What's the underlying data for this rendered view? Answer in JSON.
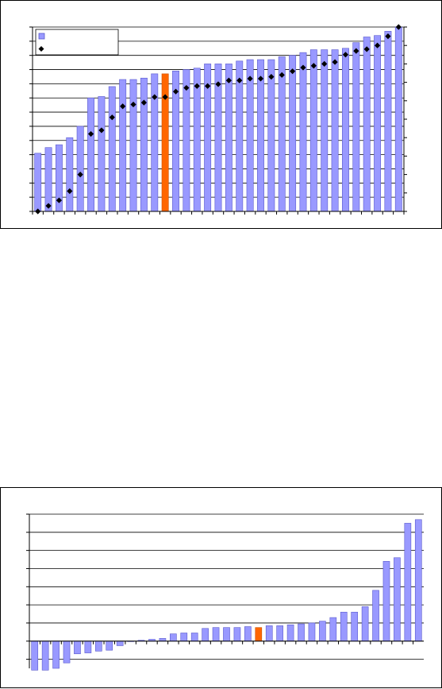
{
  "chart_data": [
    {
      "type": "bar",
      "title": "",
      "xlabel": "",
      "ylabel": "",
      "legend_placement": "top-left",
      "grid": true,
      "colors": {
        "bar": "#9999ff",
        "bar_edge": "#5a5acd",
        "highlight": "#ff6600",
        "marker": "#000000",
        "grid": "#000000"
      },
      "highlight_index": 12,
      "ylim": [
        0,
        13
      ],
      "y2lim": [
        0,
        100
      ],
      "series": [
        {
          "name": "",
          "type": "bar",
          "axis": "left",
          "values": [
            4.1,
            4.5,
            4.7,
            5.2,
            6.0,
            8.0,
            8.1,
            8.8,
            9.3,
            9.3,
            9.4,
            9.7,
            9.7,
            9.9,
            10.0,
            10.1,
            10.4,
            10.4,
            10.4,
            10.6,
            10.7,
            10.7,
            10.7,
            10.9,
            11.0,
            11.2,
            11.4,
            11.4,
            11.4,
            11.5,
            11.9,
            12.3,
            12.4,
            12.7,
            13.0
          ]
        },
        {
          "name": "",
          "type": "scatter",
          "axis": "right",
          "values": [
            0,
            3,
            6,
            11,
            20,
            42,
            44,
            51,
            57,
            58,
            59,
            62,
            62,
            65,
            67,
            68,
            68,
            69,
            71,
            71,
            72,
            72,
            73,
            74,
            76,
            78,
            79,
            80,
            81,
            85,
            87,
            88,
            90,
            95,
            100
          ]
        }
      ]
    },
    {
      "type": "bar",
      "title": "",
      "xlabel": "",
      "ylabel": "",
      "grid": true,
      "colors": {
        "bar": "#9999ff",
        "bar_edge": "#5a5acd",
        "highlight": "#ff6600",
        "grid": "#000000"
      },
      "highlight_index": 21,
      "ylim": [
        -1.5,
        7
      ],
      "values": [
        -1.6,
        -1.6,
        -1.5,
        -1.2,
        -0.7,
        -0.65,
        -0.55,
        -0.5,
        -0.25,
        0,
        0.05,
        0.1,
        0.15,
        0.4,
        0.45,
        0.45,
        0.7,
        0.75,
        0.75,
        0.75,
        0.8,
        0.75,
        0.85,
        0.85,
        0.9,
        0.95,
        1.0,
        1.1,
        1.3,
        1.6,
        1.6,
        1.9,
        2.8,
        4.4,
        4.6,
        6.5,
        6.7
      ]
    }
  ]
}
